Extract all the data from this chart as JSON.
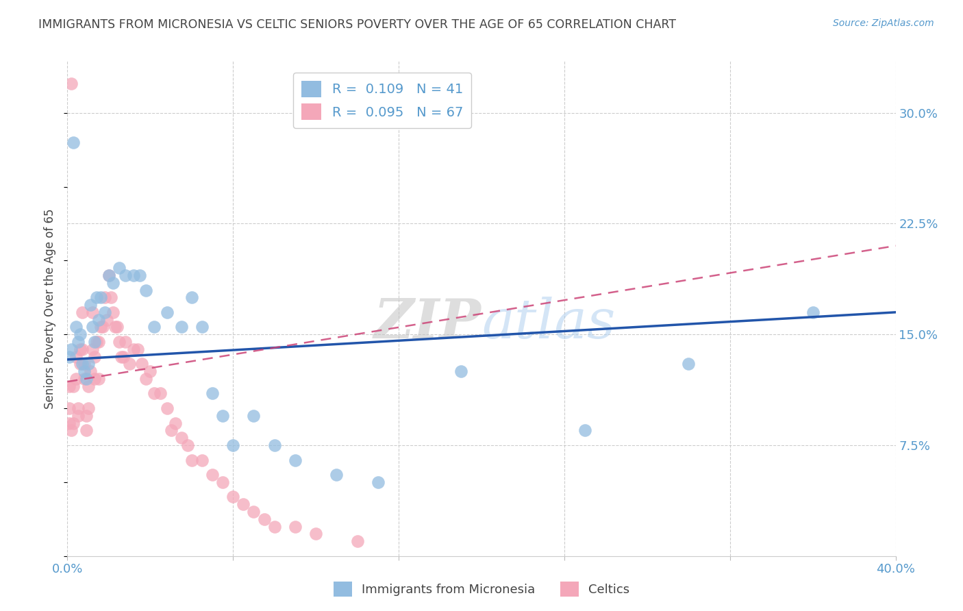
{
  "title": "IMMIGRANTS FROM MICRONESIA VS CELTIC SENIORS POVERTY OVER THE AGE OF 65 CORRELATION CHART",
  "source": "Source: ZipAtlas.com",
  "ylabel": "Seniors Poverty Over the Age of 65",
  "xlim": [
    0,
    0.4
  ],
  "ylim": [
    0,
    0.335
  ],
  "xticks": [
    0.0,
    0.08,
    0.16,
    0.24,
    0.32,
    0.4
  ],
  "ytick_labels_right": [
    "30.0%",
    "22.5%",
    "15.0%",
    "7.5%"
  ],
  "yticks_right": [
    0.3,
    0.225,
    0.15,
    0.075
  ],
  "blue_color": "#92bce0",
  "pink_color": "#f4a7b9",
  "blue_line_color": "#2255aa",
  "pink_line_color": "#cc4477",
  "title_color": "#444444",
  "axis_color": "#5599cc",
  "watermark": "ZIPatlas",
  "blue_scatter_x": [
    0.001,
    0.002,
    0.003,
    0.004,
    0.005,
    0.006,
    0.007,
    0.008,
    0.009,
    0.01,
    0.011,
    0.012,
    0.013,
    0.014,
    0.015,
    0.016,
    0.018,
    0.02,
    0.022,
    0.025,
    0.028,
    0.032,
    0.035,
    0.038,
    0.042,
    0.048,
    0.055,
    0.06,
    0.065,
    0.07,
    0.075,
    0.08,
    0.09,
    0.1,
    0.11,
    0.13,
    0.15,
    0.19,
    0.25,
    0.3,
    0.36
  ],
  "blue_scatter_y": [
    0.135,
    0.14,
    0.28,
    0.155,
    0.145,
    0.15,
    0.13,
    0.125,
    0.12,
    0.13,
    0.17,
    0.155,
    0.145,
    0.175,
    0.16,
    0.175,
    0.165,
    0.19,
    0.185,
    0.195,
    0.19,
    0.19,
    0.19,
    0.18,
    0.155,
    0.165,
    0.155,
    0.175,
    0.155,
    0.11,
    0.095,
    0.075,
    0.095,
    0.075,
    0.065,
    0.055,
    0.05,
    0.125,
    0.085,
    0.13,
    0.165
  ],
  "pink_scatter_x": [
    0.001,
    0.001,
    0.001,
    0.002,
    0.002,
    0.003,
    0.003,
    0.004,
    0.004,
    0.005,
    0.005,
    0.006,
    0.006,
    0.007,
    0.007,
    0.008,
    0.008,
    0.009,
    0.009,
    0.01,
    0.01,
    0.011,
    0.012,
    0.012,
    0.013,
    0.013,
    0.014,
    0.015,
    0.015,
    0.016,
    0.017,
    0.018,
    0.019,
    0.02,
    0.021,
    0.022,
    0.023,
    0.024,
    0.025,
    0.026,
    0.027,
    0.028,
    0.03,
    0.032,
    0.034,
    0.036,
    0.038,
    0.04,
    0.042,
    0.045,
    0.048,
    0.05,
    0.052,
    0.055,
    0.058,
    0.06,
    0.065,
    0.07,
    0.075,
    0.08,
    0.085,
    0.09,
    0.095,
    0.1,
    0.11,
    0.12,
    0.14
  ],
  "pink_scatter_y": [
    0.115,
    0.1,
    0.09,
    0.32,
    0.085,
    0.115,
    0.09,
    0.135,
    0.12,
    0.1,
    0.095,
    0.14,
    0.13,
    0.165,
    0.14,
    0.13,
    0.12,
    0.095,
    0.085,
    0.115,
    0.1,
    0.125,
    0.165,
    0.14,
    0.135,
    0.12,
    0.145,
    0.145,
    0.12,
    0.155,
    0.155,
    0.175,
    0.16,
    0.19,
    0.175,
    0.165,
    0.155,
    0.155,
    0.145,
    0.135,
    0.135,
    0.145,
    0.13,
    0.14,
    0.14,
    0.13,
    0.12,
    0.125,
    0.11,
    0.11,
    0.1,
    0.085,
    0.09,
    0.08,
    0.075,
    0.065,
    0.065,
    0.055,
    0.05,
    0.04,
    0.035,
    0.03,
    0.025,
    0.02,
    0.02,
    0.015,
    0.01
  ],
  "blue_line_x": [
    0.0,
    0.4
  ],
  "blue_line_y": [
    0.133,
    0.165
  ],
  "pink_line_x": [
    0.0,
    0.4
  ],
  "pink_line_y": [
    0.118,
    0.21
  ],
  "figsize": [
    14.06,
    8.92
  ],
  "dpi": 100
}
